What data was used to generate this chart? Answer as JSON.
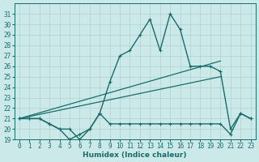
{
  "background_color": "#cce9e9",
  "grid_color": "#b0d0d0",
  "line_color": "#1a6b6b",
  "xlabel": "Humidex (Indice chaleur)",
  "ylim": [
    19,
    32
  ],
  "xlim": [
    -0.5,
    23.5
  ],
  "yticks": [
    19,
    20,
    21,
    22,
    23,
    24,
    25,
    26,
    27,
    28,
    29,
    30,
    31
  ],
  "xticks": [
    0,
    1,
    2,
    3,
    4,
    5,
    6,
    7,
    8,
    9,
    10,
    11,
    12,
    13,
    14,
    15,
    16,
    17,
    18,
    19,
    20,
    21,
    22,
    23
  ],
  "series_with_markers": [
    {
      "x": [
        0,
        1,
        2,
        3,
        4,
        5,
        6,
        7,
        8,
        9,
        10,
        11,
        12,
        13,
        14,
        15,
        16,
        17,
        18,
        19,
        20,
        21,
        22,
        23
      ],
      "y": [
        21,
        21,
        21,
        20.5,
        20,
        20,
        19,
        20,
        21.5,
        20.5,
        20.5,
        20.5,
        20.5,
        20.5,
        20.5,
        20.5,
        20.5,
        20.5,
        20.5,
        20.5,
        20.5,
        19.5,
        21.5,
        21
      ],
      "linewidth": 1.0
    },
    {
      "x": [
        0,
        1,
        2,
        3,
        4,
        5,
        6,
        7,
        8,
        9,
        10,
        11,
        12,
        13,
        14,
        15,
        16,
        17,
        18,
        19,
        20,
        21,
        22,
        23
      ],
      "y": [
        21,
        21,
        21,
        20.5,
        20,
        19,
        19.5,
        20,
        21.5,
        24.5,
        27,
        27.5,
        29,
        30.5,
        27.5,
        31,
        29.5,
        26,
        26,
        26,
        25.5,
        20,
        21.5,
        21
      ],
      "linewidth": 1.0
    }
  ],
  "series_lines": [
    {
      "x": [
        0,
        20
      ],
      "y": [
        21.0,
        25.0
      ],
      "linewidth": 0.9
    },
    {
      "x": [
        0,
        20
      ],
      "y": [
        21.0,
        26.5
      ],
      "linewidth": 0.9
    }
  ]
}
